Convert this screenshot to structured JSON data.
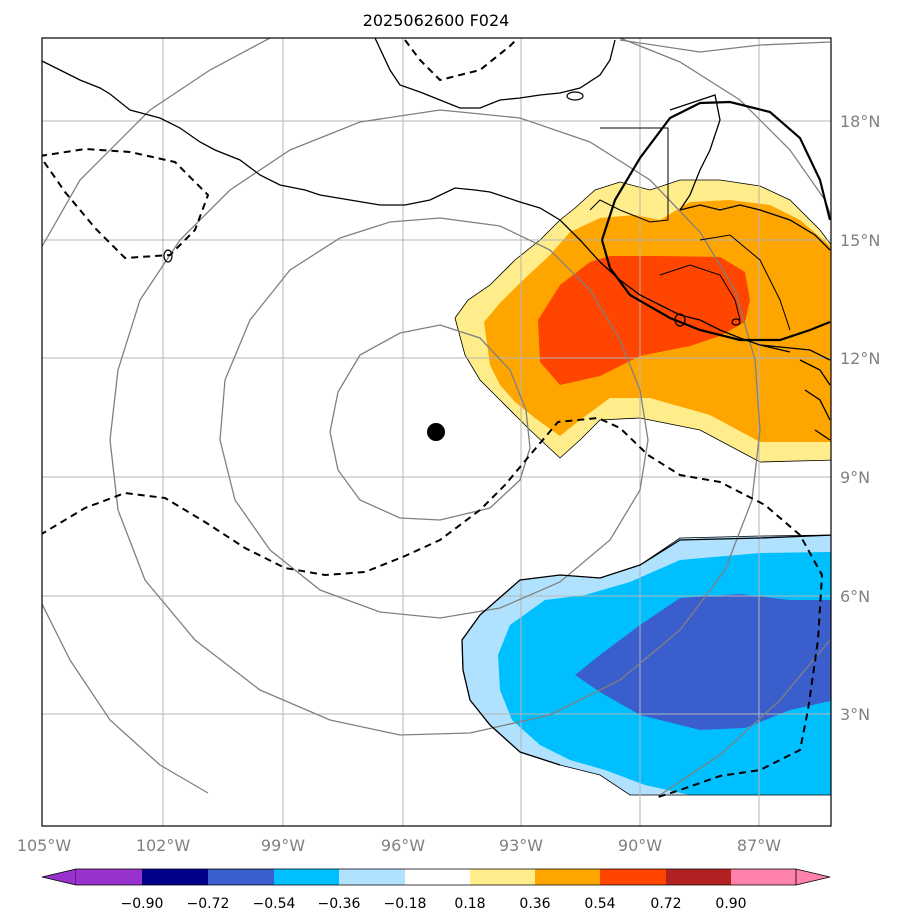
{
  "title": "2025062600 F024",
  "map": {
    "lon_range": [
      -105,
      -86
    ],
    "lat_range": [
      0,
      20
    ],
    "lon_ticks": [
      "105°W",
      "102°W",
      "99°W",
      "96°W",
      "93°W",
      "90°W",
      "87°W"
    ],
    "lat_ticks": [
      "3°N",
      "6°N",
      "9°N",
      "12°N",
      "15°N",
      "18°N"
    ],
    "center_marker": {
      "lon": -95.2,
      "lat": 10.1
    },
    "grid": true
  },
  "colorbar": {
    "ticks": [
      "−0.90",
      "−0.72",
      "−0.54",
      "−0.36",
      "−0.18",
      "0.18",
      "0.36",
      "0.54",
      "0.72",
      "0.90"
    ],
    "colors": [
      "#9932cc",
      "#00008b",
      "#3a5fcd",
      "#00bfff",
      "#b0e2ff",
      "#ffffff",
      "#ffec8b",
      "#ffa500",
      "#ff4500",
      "#b22222",
      "#ff82ab"
    ],
    "extend": "both"
  }
}
